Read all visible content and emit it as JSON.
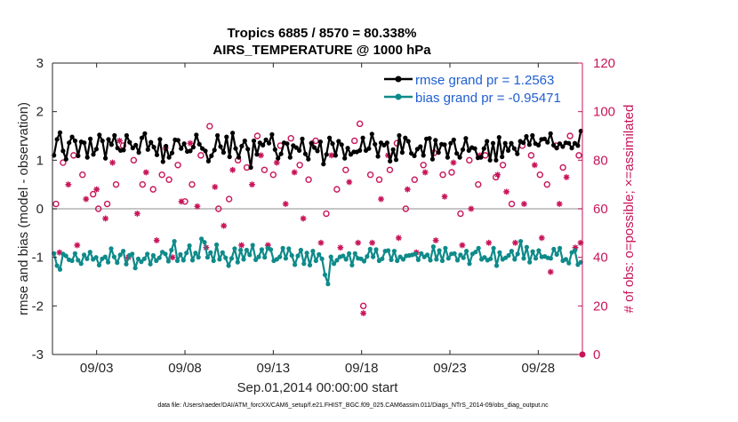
{
  "chart_data": {
    "type": "line",
    "title": "Tropics 6885 / 8570 = 80.338%",
    "subtitle": "AIRS_TEMPERATURE @ 1000 hPa",
    "xlabel": "Sep.01,2014 00:00:00 start",
    "ylabel": "rmse and bias (model - observation)",
    "y2label": "# of obs: o=possible; ×=assimilated",
    "footnote": "data file: /Users/raeder/DAI/ATM_forcXX/CAM6_setup/f.e21.FHIST_BGC.f09_025.CAM6assim.011/Diags_NTrS_2014-09/obs_diag_output.nc",
    "x_start": 0.5,
    "x_end": 30.5,
    "ylim": [
      -3,
      3
    ],
    "y2lim": [
      0,
      120
    ],
    "yticks": [
      -3,
      -2,
      -1,
      0,
      1,
      2,
      3
    ],
    "y2ticks": [
      0,
      20,
      40,
      60,
      80,
      100,
      120
    ],
    "xticks": [
      {
        "day": 3,
        "label": "09/03"
      },
      {
        "day": 8,
        "label": "09/08"
      },
      {
        "day": 13,
        "label": "09/13"
      },
      {
        "day": 18,
        "label": "09/18"
      },
      {
        "day": 23,
        "label": "09/23"
      },
      {
        "day": 28,
        "label": "09/28"
      }
    ],
    "legend_position": "top-right",
    "colors": {
      "rmse": "#000000",
      "bias": "#0f8a8a",
      "obs": "#c8155a",
      "zero_line": "#b3b3b3"
    },
    "series": [
      {
        "name": "rmse grand pr = 1.2563",
        "key": "rmse",
        "values": [
          1.1,
          1.43,
          1.57,
          1.19,
          1.02,
          1.36,
          1.48,
          1.4,
          1.09,
          1.38,
          1.36,
          1.06,
          1.44,
          1.12,
          1.23,
          1.52,
          1.4,
          1.04,
          1.43,
          1.32,
          1.51,
          1.25,
          1.2,
          1.21,
          1.51,
          1.37,
          1.25,
          1.31,
          1.16,
          1.46,
          1.55,
          1.22,
          1.37,
          1.27,
          1.11,
          1.43,
          0.97,
          1.29,
          1.06,
          1.15,
          1.42,
          1.41,
          1.24,
          1.34,
          1.18,
          1.19,
          1.27,
          1.52,
          1.33,
          1.24,
          1.19,
          0.98,
          1.09,
          1.21,
          1.51,
          1.28,
          1.16,
          1.48,
          1.07,
          1.56,
          1.24,
          1.06,
          1.29,
          1.4,
          1.23,
          0.85,
          1.4,
          1.12,
          1.36,
          1.31,
          1.42,
          1.35,
          1.53,
          1.22,
          1.04,
          1.13,
          1.36,
          1.34,
          1.06,
          1.3,
          1.26,
          1.2,
          1.44,
          1.13,
          1.02,
          1.35,
          1.26,
          1.19,
          1.38,
          0.92,
          1.12,
          1.46,
          1.34,
          1.1,
          1.39,
          1.32,
          1.04,
          1.25,
          1.12,
          1.17,
          1.17,
          1.2,
          1.46,
          1.2,
          1.24,
          1.54,
          1.33,
          1.08,
          1.36,
          1.31,
          1.36,
          0.98,
          1.22,
          1.01,
          1.51,
          1.16,
          1.46,
          1.39,
          1.14,
          1.09,
          1.23,
          1.28,
          1.1,
          1.44,
          1.45,
          1.02,
          1.41,
          1.16,
          1.33,
          1.32,
          1.06,
          1.35,
          1.42,
          1.14,
          1.06,
          1.22,
          1.45,
          1.2,
          1.26,
          1.24,
          1.05,
          1.06,
          1.24,
          1.39,
          1.0,
          1.35,
          1.0,
          1.47,
          1.07,
          1.35,
          1.2,
          1.35,
          1.24,
          1.13,
          1.39,
          1.36,
          1.49,
          1.32,
          1.51,
          1.34,
          1.31,
          1.43,
          1.44,
          1.37,
          1.55,
          1.31,
          1.25,
          1.34,
          1.28,
          1.36,
          1.35,
          1.25,
          1.35,
          1.3,
          1.6
        ]
      },
      {
        "name": "bias grand pr = -0.95471",
        "key": "bias",
        "values": [
          -0.92,
          -1.17,
          -1.25,
          -0.93,
          -0.97,
          -1.05,
          -1.07,
          -0.92,
          -1.06,
          -1.13,
          -0.95,
          -1.03,
          -0.89,
          -1.04,
          -1.0,
          -1.16,
          -1.03,
          -0.99,
          -1.1,
          -0.82,
          -0.99,
          -1.11,
          -0.95,
          -0.87,
          -1.14,
          -0.96,
          -0.93,
          -1.22,
          -1.03,
          -1.09,
          -1.03,
          -0.93,
          -1.14,
          -0.96,
          -1.07,
          -1.01,
          -0.89,
          -0.93,
          -1.08,
          -0.85,
          -0.67,
          -1.07,
          -0.94,
          -1.06,
          -0.91,
          -0.76,
          -1.06,
          -0.91,
          -1.0,
          -0.62,
          -0.69,
          -1.0,
          -0.9,
          -1.07,
          -0.74,
          -1.04,
          -0.9,
          -1.01,
          -1.17,
          -1.02,
          -0.82,
          -1.1,
          -0.85,
          -1.04,
          -0.85,
          -0.95,
          -0.75,
          -1.05,
          -0.99,
          -0.84,
          -1.0,
          -0.81,
          -0.84,
          -1.07,
          -1.04,
          -0.99,
          -0.81,
          -1.02,
          -0.82,
          -0.96,
          -1.15,
          -0.97,
          -0.85,
          -1.13,
          -0.91,
          -1.16,
          -0.87,
          -1.07,
          -0.94,
          -1.03,
          -1.36,
          -1.55,
          -0.99,
          -1.13,
          -1.06,
          -0.99,
          -0.97,
          -1.04,
          -0.92,
          -1.16,
          -0.92,
          -1.02,
          -1.03,
          -1.08,
          -0.98,
          -0.83,
          -0.99,
          -0.84,
          -1.07,
          -1.03,
          -0.87,
          -0.86,
          -1.05,
          -0.87,
          -1.07,
          -0.99,
          -1.04,
          -0.97,
          -0.96,
          -0.95,
          -0.93,
          -1.05,
          -0.92,
          -0.99,
          -0.95,
          -1.06,
          -0.78,
          -1.04,
          -0.86,
          -1.07,
          -0.81,
          -1.02,
          -0.93,
          -0.92,
          -1.06,
          -0.95,
          -1.01,
          -0.87,
          -1.13,
          -0.93,
          -0.89,
          -0.81,
          -1.04,
          -1.0,
          -1.06,
          -1.03,
          -0.81,
          -1.17,
          -0.9,
          -1.04,
          -1.01,
          -0.96,
          -0.87,
          -1.04,
          -0.93,
          -0.67,
          -1.02,
          -0.79,
          -1.1,
          -0.88,
          -1.02,
          -0.86,
          -0.99,
          -0.98,
          -1.01,
          -1.02,
          -0.83,
          -0.94,
          -0.81,
          -1.07,
          -1.04,
          -1.12,
          -0.9,
          -0.86,
          -1.15,
          -1.1
        ]
      }
    ],
    "obs_possible": [
      {
        "d": 0.7,
        "v": 62
      },
      {
        "d": 1.1,
        "v": 79
      },
      {
        "d": 1.7,
        "v": 82
      },
      {
        "d": 2.2,
        "v": 74
      },
      {
        "d": 2.8,
        "v": 66
      },
      {
        "d": 3.1,
        "v": 60
      },
      {
        "d": 3.6,
        "v": 62
      },
      {
        "d": 4.1,
        "v": 70
      },
      {
        "d": 4.5,
        "v": 86
      },
      {
        "d": 5.1,
        "v": 80
      },
      {
        "d": 5.6,
        "v": 70
      },
      {
        "d": 6.2,
        "v": 68
      },
      {
        "d": 6.7,
        "v": 74
      },
      {
        "d": 7.1,
        "v": 72
      },
      {
        "d": 7.6,
        "v": 78
      },
      {
        "d": 8.0,
        "v": 63
      },
      {
        "d": 8.4,
        "v": 70
      },
      {
        "d": 8.9,
        "v": 82
      },
      {
        "d": 9.4,
        "v": 94
      },
      {
        "d": 9.9,
        "v": 60
      },
      {
        "d": 10.5,
        "v": 64
      },
      {
        "d": 11.0,
        "v": 80
      },
      {
        "d": 11.5,
        "v": 77
      },
      {
        "d": 12.1,
        "v": 90
      },
      {
        "d": 12.5,
        "v": 76
      },
      {
        "d": 13.0,
        "v": 74
      },
      {
        "d": 13.4,
        "v": 86
      },
      {
        "d": 14.0,
        "v": 89
      },
      {
        "d": 14.5,
        "v": 78
      },
      {
        "d": 15.0,
        "v": 72
      },
      {
        "d": 15.4,
        "v": 88
      },
      {
        "d": 16.0,
        "v": 58
      },
      {
        "d": 16.6,
        "v": 68
      },
      {
        "d": 17.1,
        "v": 76
      },
      {
        "d": 17.6,
        "v": 88
      },
      {
        "d": 17.9,
        "v": 95
      },
      {
        "d": 18.1,
        "v": 20
      },
      {
        "d": 18.5,
        "v": 74
      },
      {
        "d": 19.0,
        "v": 72
      },
      {
        "d": 19.6,
        "v": 76
      },
      {
        "d": 20.0,
        "v": 87
      },
      {
        "d": 20.5,
        "v": 60
      },
      {
        "d": 21.0,
        "v": 72
      },
      {
        "d": 21.5,
        "v": 78
      },
      {
        "d": 22.1,
        "v": 83
      },
      {
        "d": 22.6,
        "v": 74
      },
      {
        "d": 23.1,
        "v": 75
      },
      {
        "d": 23.6,
        "v": 58
      },
      {
        "d": 24.1,
        "v": 80
      },
      {
        "d": 24.6,
        "v": 70
      },
      {
        "d": 25.0,
        "v": 82
      },
      {
        "d": 25.6,
        "v": 73
      },
      {
        "d": 26.0,
        "v": 78
      },
      {
        "d": 26.5,
        "v": 62
      },
      {
        "d": 27.1,
        "v": 86
      },
      {
        "d": 27.6,
        "v": 82
      },
      {
        "d": 28.1,
        "v": 74
      },
      {
        "d": 28.5,
        "v": 70
      },
      {
        "d": 29.0,
        "v": 86
      },
      {
        "d": 29.4,
        "v": 77
      },
      {
        "d": 29.8,
        "v": 90
      },
      {
        "d": 30.3,
        "v": 82
      }
    ],
    "obs_assimilated": [
      {
        "d": 0.9,
        "v": 42
      },
      {
        "d": 1.4,
        "v": 70
      },
      {
        "d": 1.9,
        "v": 45
      },
      {
        "d": 2.4,
        "v": 64
      },
      {
        "d": 3.0,
        "v": 68
      },
      {
        "d": 3.5,
        "v": 56
      },
      {
        "d": 3.9,
        "v": 79
      },
      {
        "d": 4.3,
        "v": 88
      },
      {
        "d": 4.8,
        "v": 40
      },
      {
        "d": 5.3,
        "v": 58
      },
      {
        "d": 5.8,
        "v": 75
      },
      {
        "d": 6.4,
        "v": 47
      },
      {
        "d": 6.9,
        "v": 85
      },
      {
        "d": 7.3,
        "v": 40
      },
      {
        "d": 7.8,
        "v": 63
      },
      {
        "d": 8.3,
        "v": 87
      },
      {
        "d": 8.7,
        "v": 61
      },
      {
        "d": 9.2,
        "v": 44
      },
      {
        "d": 9.7,
        "v": 69
      },
      {
        "d": 10.2,
        "v": 53
      },
      {
        "d": 10.7,
        "v": 76
      },
      {
        "d": 11.2,
        "v": 45
      },
      {
        "d": 11.8,
        "v": 70
      },
      {
        "d": 12.3,
        "v": 82
      },
      {
        "d": 12.7,
        "v": 45
      },
      {
        "d": 13.2,
        "v": 79
      },
      {
        "d": 13.7,
        "v": 62
      },
      {
        "d": 14.2,
        "v": 75
      },
      {
        "d": 14.7,
        "v": 56
      },
      {
        "d": 15.2,
        "v": 87
      },
      {
        "d": 15.7,
        "v": 46
      },
      {
        "d": 16.3,
        "v": 82
      },
      {
        "d": 16.8,
        "v": 44
      },
      {
        "d": 17.3,
        "v": 71
      },
      {
        "d": 17.8,
        "v": 46
      },
      {
        "d": 18.1,
        "v": 17
      },
      {
        "d": 18.6,
        "v": 46
      },
      {
        "d": 19.1,
        "v": 64
      },
      {
        "d": 19.5,
        "v": 82
      },
      {
        "d": 20.1,
        "v": 48
      },
      {
        "d": 20.6,
        "v": 68
      },
      {
        "d": 21.1,
        "v": 42
      },
      {
        "d": 21.6,
        "v": 75
      },
      {
        "d": 22.2,
        "v": 47
      },
      {
        "d": 22.7,
        "v": 65
      },
      {
        "d": 23.2,
        "v": 79
      },
      {
        "d": 23.7,
        "v": 45
      },
      {
        "d": 24.2,
        "v": 60
      },
      {
        "d": 24.7,
        "v": 82
      },
      {
        "d": 25.2,
        "v": 46
      },
      {
        "d": 25.7,
        "v": 74
      },
      {
        "d": 26.2,
        "v": 67
      },
      {
        "d": 26.7,
        "v": 46
      },
      {
        "d": 27.2,
        "v": 62
      },
      {
        "d": 27.8,
        "v": 78
      },
      {
        "d": 28.2,
        "v": 48
      },
      {
        "d": 28.7,
        "v": 34
      },
      {
        "d": 29.2,
        "v": 62
      },
      {
        "d": 29.6,
        "v": 73
      },
      {
        "d": 30.1,
        "v": 44
      },
      {
        "d": 30.4,
        "v": 46
      }
    ]
  }
}
